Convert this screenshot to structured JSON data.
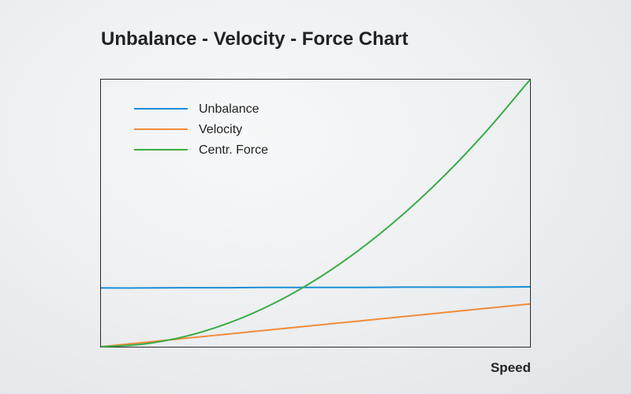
{
  "chart_data": {
    "type": "line",
    "title": "Unbalance - Velocity - Force Chart",
    "xlabel": "Speed",
    "ylabel": "",
    "xlim": [
      0,
      1
    ],
    "ylim": [
      0,
      1
    ],
    "grid": false,
    "legend_position": "top-left",
    "x": [
      0,
      0.1,
      0.2,
      0.3,
      0.4,
      0.5,
      0.6,
      0.7,
      0.8,
      0.9,
      1.0
    ],
    "series": [
      {
        "name": "Unbalance",
        "color": "#1a8fd8",
        "values": [
          0.22,
          0.22,
          0.221,
          0.221,
          0.222,
          0.222,
          0.222,
          0.223,
          0.223,
          0.223,
          0.224
        ]
      },
      {
        "name": "Velocity",
        "color": "#f08c3a",
        "values": [
          0,
          0.016,
          0.032,
          0.048,
          0.064,
          0.08,
          0.096,
          0.112,
          0.128,
          0.144,
          0.16
        ]
      },
      {
        "name": "Centr. Force",
        "color": "#3aac46",
        "values": [
          0,
          0.01,
          0.04,
          0.09,
          0.16,
          0.25,
          0.36,
          0.49,
          0.64,
          0.81,
          1.0
        ]
      }
    ]
  }
}
